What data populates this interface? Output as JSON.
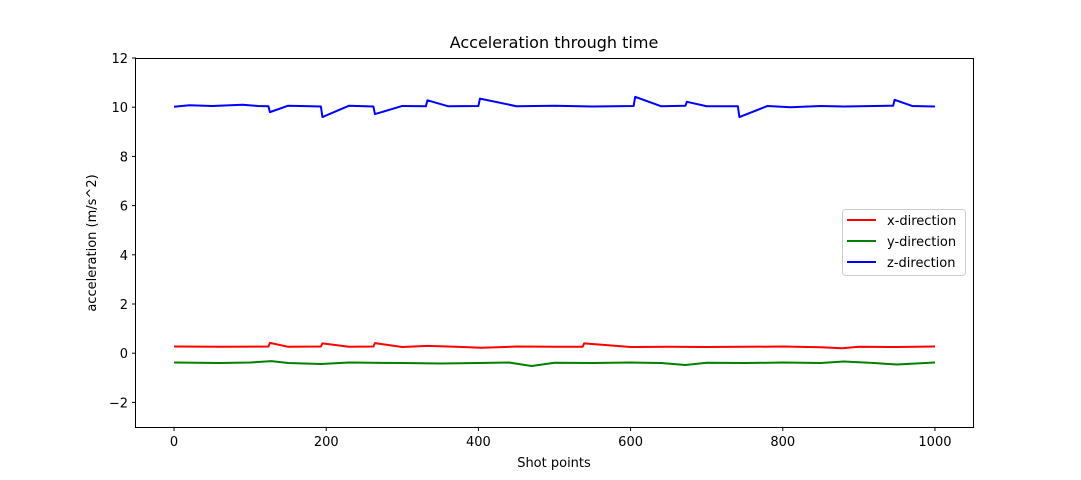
{
  "chart_data": {
    "type": "line",
    "title": "Acceleration through time",
    "xlabel": "Shot points",
    "ylabel": "acceleration (m/s^2)",
    "xlim": [
      -50,
      1050
    ],
    "ylim": [
      -3,
      12
    ],
    "xticks": [
      0,
      200,
      400,
      600,
      800,
      1000
    ],
    "yticks": [
      -2,
      0,
      2,
      4,
      6,
      8,
      10,
      12
    ],
    "grid": false,
    "legend_position": "center-right",
    "series": [
      {
        "name": "x-direction",
        "color": "#ff0000",
        "x": [
          0,
          60,
          124,
          126,
          150,
          193,
          195,
          230,
          262,
          264,
          300,
          333,
          370,
          404,
          450,
          500,
          537,
          539,
          600,
          650,
          700,
          750,
          800,
          850,
          878,
          900,
          950,
          1000
        ],
        "y": [
          0.27,
          0.26,
          0.27,
          0.42,
          0.26,
          0.27,
          0.4,
          0.26,
          0.27,
          0.41,
          0.25,
          0.3,
          0.26,
          0.22,
          0.27,
          0.26,
          0.26,
          0.4,
          0.25,
          0.26,
          0.25,
          0.26,
          0.27,
          0.24,
          0.2,
          0.26,
          0.25,
          0.27
        ]
      },
      {
        "name": "y-direction",
        "color": "#008000",
        "x": [
          0,
          60,
          100,
          128,
          150,
          193,
          230,
          300,
          350,
          400,
          440,
          470,
          500,
          550,
          600,
          640,
          672,
          700,
          750,
          800,
          850,
          880,
          920,
          950,
          1000
        ],
        "y": [
          -0.38,
          -0.4,
          -0.38,
          -0.32,
          -0.4,
          -0.44,
          -0.38,
          -0.4,
          -0.42,
          -0.4,
          -0.38,
          -0.52,
          -0.39,
          -0.4,
          -0.38,
          -0.4,
          -0.48,
          -0.39,
          -0.4,
          -0.38,
          -0.4,
          -0.34,
          -0.4,
          -0.46,
          -0.38
        ]
      },
      {
        "name": "z-direction",
        "color": "#0000ff",
        "x": [
          0,
          20,
          50,
          90,
          110,
          124,
          126,
          150,
          180,
          193,
          195,
          230,
          262,
          264,
          300,
          331,
          333,
          360,
          400,
          402,
          450,
          500,
          550,
          604,
          606,
          640,
          672,
          674,
          700,
          741,
          743,
          780,
          810,
          850,
          880,
          945,
          947,
          970,
          1000
        ],
        "y": [
          10.02,
          10.08,
          10.05,
          10.1,
          10.05,
          10.04,
          9.8,
          10.06,
          10.04,
          10.03,
          9.6,
          10.06,
          10.03,
          9.72,
          10.05,
          10.04,
          10.28,
          10.04,
          10.05,
          10.35,
          10.04,
          10.06,
          10.03,
          10.05,
          10.42,
          10.04,
          10.06,
          10.22,
          10.04,
          10.04,
          9.6,
          10.05,
          10.0,
          10.05,
          10.03,
          10.06,
          10.3,
          10.05,
          10.03
        ]
      }
    ]
  }
}
